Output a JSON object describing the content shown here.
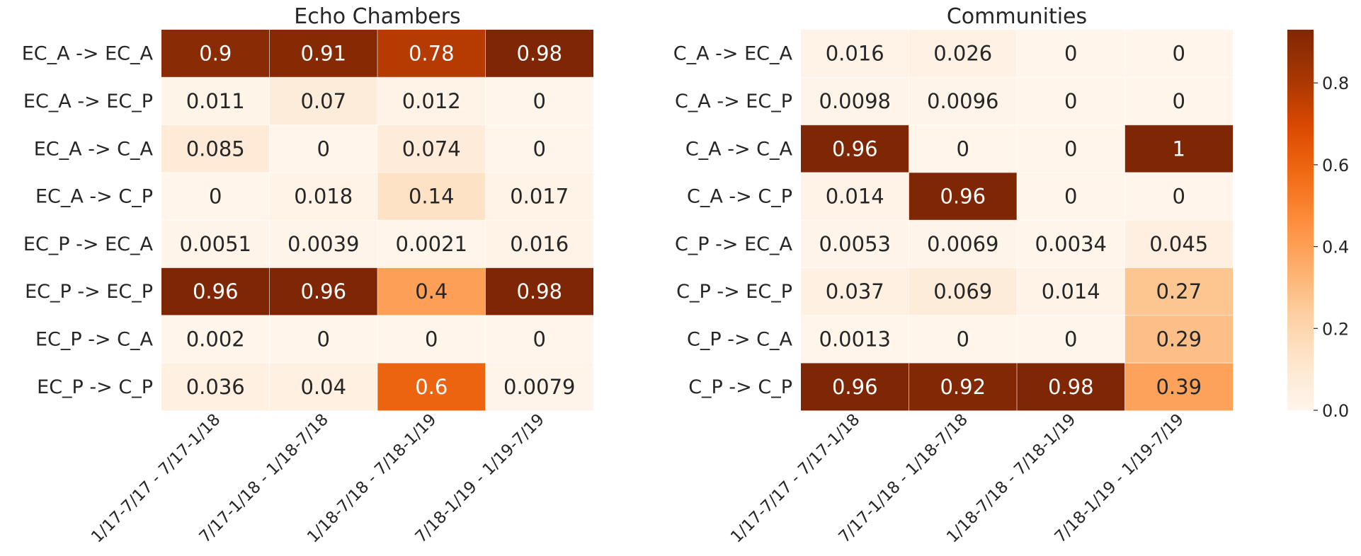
{
  "chart_data": [
    {
      "type": "heatmap",
      "title": "Echo Chambers",
      "rows": [
        "EC_A -> EC_A",
        "EC_A  -> EC_P",
        "EC_A  -> C_A",
        "EC_A  -> C_P",
        "EC_P -> EC_A",
        "EC_P -> EC_P",
        "EC_P -> C_A",
        "EC_P -> C_P"
      ],
      "columns": [
        "1/17-7/17 - 7/17-1/18",
        "7/17-1/18 - 1/18-7/18",
        "1/18-7/18 - 7/18-1/19",
        "7/18-1/19 - 1/19-7/19"
      ],
      "values": [
        [
          0.9,
          0.91,
          0.78,
          0.98
        ],
        [
          0.011,
          0.07,
          0.012,
          0
        ],
        [
          0.085,
          0,
          0.074,
          0
        ],
        [
          0,
          0.018,
          0.14,
          0.017
        ],
        [
          0.0051,
          0.0039,
          0.0021,
          0.016
        ],
        [
          0.96,
          0.96,
          0.4,
          0.98
        ],
        [
          0.002,
          0,
          0,
          0
        ],
        [
          0.036,
          0.04,
          0.6,
          0.0079
        ]
      ],
      "labels": [
        [
          "0.9",
          "0.91",
          "0.78",
          "0.98"
        ],
        [
          "0.011",
          "0.07",
          "0.012",
          "0"
        ],
        [
          "0.085",
          "0",
          "0.074",
          "0"
        ],
        [
          "0",
          "0.018",
          "0.14",
          "0.017"
        ],
        [
          "0.0051",
          "0.0039",
          "0.0021",
          "0.016"
        ],
        [
          "0.96",
          "0.96",
          "0.4",
          "0.98"
        ],
        [
          "0.002",
          "0",
          "0",
          "0"
        ],
        [
          "0.036",
          "0.04",
          "0.6",
          "0.0079"
        ]
      ]
    },
    {
      "type": "heatmap",
      "title": "Communities",
      "rows": [
        "C_A -> EC_A",
        "C_A  -> EC_P",
        "C_A  -> C_A",
        "C_A  -> C_P",
        "C_P -> EC_A",
        "C_P -> EC_P",
        "C_P -> C_A",
        "C_P -> C_P"
      ],
      "columns": [
        "1/17-7/17 - 7/17-1/18",
        "7/17-1/18 - 1/18-7/18",
        "1/18-7/18 - 7/18-1/19",
        "7/18-1/19 - 1/19-7/19"
      ],
      "values": [
        [
          0.016,
          0.026,
          0,
          0
        ],
        [
          0.0098,
          0.0096,
          0,
          0
        ],
        [
          0.96,
          0,
          0,
          1
        ],
        [
          0.014,
          0.96,
          0,
          0
        ],
        [
          0.0053,
          0.0069,
          0.0034,
          0.045
        ],
        [
          0.037,
          0.069,
          0.014,
          0.27
        ],
        [
          0.0013,
          0,
          0,
          0.29
        ],
        [
          0.96,
          0.92,
          0.98,
          0.39
        ]
      ],
      "labels": [
        [
          "0.016",
          "0.026",
          "0",
          "0"
        ],
        [
          "0.0098",
          "0.0096",
          "0",
          "0"
        ],
        [
          "0.96",
          "0",
          "0",
          "1"
        ],
        [
          "0.014",
          "0.96",
          "0",
          "0"
        ],
        [
          "0.0053",
          "0.0069",
          "0.0034",
          "0.045"
        ],
        [
          "0.037",
          "0.069",
          "0.014",
          "0.27"
        ],
        [
          "0.0013",
          "0",
          "0",
          "0.29"
        ],
        [
          "0.96",
          "0.92",
          "0.98",
          "0.39"
        ]
      ]
    }
  ],
  "colorbar": {
    "colormap": "Oranges",
    "range": [
      0,
      0.93
    ],
    "ticks": [
      0.0,
      0.2,
      0.4,
      0.6,
      0.8
    ],
    "tick_labels": [
      "0.0",
      "0.2",
      "0.4",
      "0.6",
      "0.8"
    ]
  }
}
